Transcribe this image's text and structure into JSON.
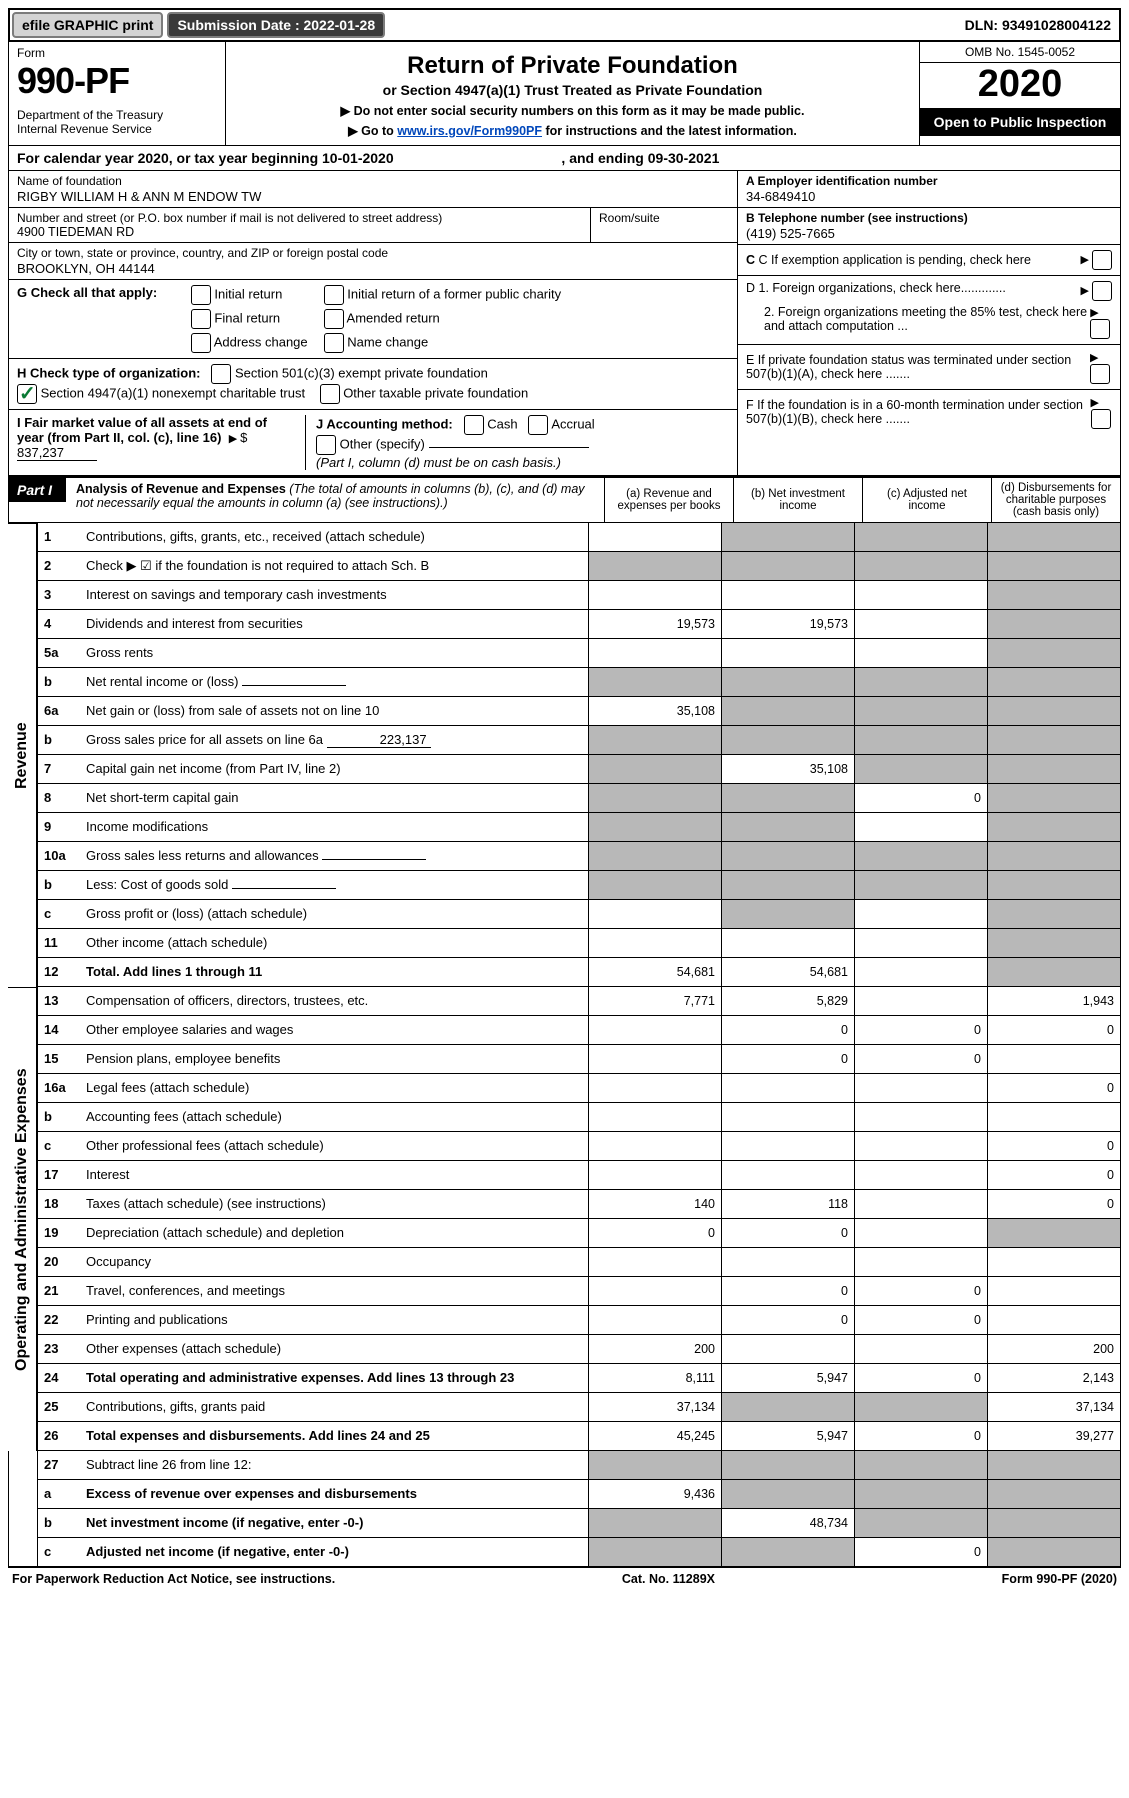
{
  "top": {
    "efile": "efile GRAPHIC print",
    "submission_label": "Submission Date : 2022-01-28",
    "dln": "DLN: 93491028004122"
  },
  "header": {
    "form_label": "Form",
    "form_number": "990-PF",
    "dept1": "Department of the Treasury",
    "dept2": "Internal Revenue Service",
    "title": "Return of Private Foundation",
    "subtitle": "or Section 4947(a)(1) Trust Treated as Private Foundation",
    "note1": "▶ Do not enter social security numbers on this form as it may be made public.",
    "note2_pre": "▶ Go to ",
    "note2_link": "www.irs.gov/Form990PF",
    "note2_post": " for instructions and the latest information.",
    "omb": "OMB No. 1545-0052",
    "year": "2020",
    "open": "Open to Public Inspection"
  },
  "cal_year": {
    "line_pre": "For calendar year 2020, or tax year beginning ",
    "begin": "10-01-2020",
    "line_mid": " , and ending ",
    "end": "09-30-2021"
  },
  "id": {
    "name_label": "Name of foundation",
    "name": "RIGBY WILLIAM H & ANN M ENDOW TW",
    "addr_label": "Number and street (or P.O. box number if mail is not delivered to street address)",
    "addr": "4900 TIEDEMAN RD",
    "room_label": "Room/suite",
    "city_label": "City or town, state or province, country, and ZIP or foreign postal code",
    "city": "BROOKLYN, OH  44144",
    "ein_label": "A Employer identification number",
    "ein": "34-6849410",
    "phone_label": "B Telephone number (see instructions)",
    "phone": "(419) 525-7665",
    "c_label": "C If exemption application is pending, check here",
    "d1": "D 1. Foreign organizations, check here.............",
    "d2": "2. Foreign organizations meeting the 85% test, check here and attach computation ...",
    "e": "E If private foundation status was terminated under section 507(b)(1)(A), check here .......",
    "f": "F If the foundation is in a 60-month termination under section 507(b)(1)(B), check here .......",
    "g_label": "G Check all that apply:",
    "g_opts": [
      "Initial return",
      "Initial return of a former public charity",
      "Final return",
      "Amended return",
      "Address change",
      "Name change"
    ],
    "h_label": "H Check type of organization:",
    "h1": "Section 501(c)(3) exempt private foundation",
    "h2": "Section 4947(a)(1) nonexempt charitable trust",
    "h3": "Other taxable private foundation",
    "i_label": "I Fair market value of all assets at end of year (from Part II, col. (c), line 16)",
    "i_val": "837,237",
    "j_label": "J Accounting method:",
    "j_opts": [
      "Cash",
      "Accrual"
    ],
    "j_other": "Other (specify)",
    "j_note": "(Part I, column (d) must be on cash basis.)"
  },
  "part1": {
    "badge": "Part I",
    "title": "Analysis of Revenue and Expenses",
    "title_note": " (The total of amounts in columns (b), (c), and (d) may not necessarily equal the amounts in column (a) (see instructions).)",
    "col_a": "(a) Revenue and expenses per books",
    "col_b": "(b) Net investment income",
    "col_c": "(c) Adjusted net income",
    "col_d": "(d) Disbursements for charitable purposes (cash basis only)"
  },
  "side": {
    "revenue": "Revenue",
    "opadmin": "Operating and Administrative Expenses"
  },
  "rows": [
    {
      "n": "1",
      "d": "Contributions, gifts, grants, etc., received (attach schedule)",
      "a": "",
      "b": "shaded",
      "c": "shaded",
      "dd": "shaded"
    },
    {
      "n": "2",
      "d": "Check ▶ ☑ if the foundation is not required to attach Sch. B",
      "nod": true,
      "a": "shaded",
      "b": "shaded",
      "c": "shaded",
      "dd": "shaded"
    },
    {
      "n": "3",
      "d": "Interest on savings and temporary cash investments",
      "a": "",
      "b": "",
      "c": "",
      "dd": "shaded"
    },
    {
      "n": "4",
      "d": "Dividends and interest from securities",
      "a": "19,573",
      "b": "19,573",
      "c": "",
      "dd": "shaded"
    },
    {
      "n": "5a",
      "d": "Gross rents",
      "a": "",
      "b": "",
      "c": "",
      "dd": "shaded"
    },
    {
      "n": "b",
      "d": "Net rental income or (loss)",
      "a": "shaded",
      "b": "shaded",
      "c": "shaded",
      "dd": "shaded",
      "inline": ""
    },
    {
      "n": "6a",
      "d": "Net gain or (loss) from sale of assets not on line 10",
      "a": "35,108",
      "b": "shaded",
      "c": "shaded",
      "dd": "shaded"
    },
    {
      "n": "b",
      "d": "Gross sales price for all assets on line 6a",
      "a": "shaded",
      "b": "shaded",
      "c": "shaded",
      "dd": "shaded",
      "inline": "223,137"
    },
    {
      "n": "7",
      "d": "Capital gain net income (from Part IV, line 2)",
      "a": "shaded",
      "b": "35,108",
      "c": "shaded",
      "dd": "shaded"
    },
    {
      "n": "8",
      "d": "Net short-term capital gain",
      "a": "shaded",
      "b": "shaded",
      "c": "0",
      "dd": "shaded"
    },
    {
      "n": "9",
      "d": "Income modifications",
      "a": "shaded",
      "b": "shaded",
      "c": "",
      "dd": "shaded"
    },
    {
      "n": "10a",
      "d": "Gross sales less returns and allowances",
      "a": "shaded",
      "b": "shaded",
      "c": "shaded",
      "dd": "shaded",
      "inline": ""
    },
    {
      "n": "b",
      "d": "Less: Cost of goods sold",
      "a": "shaded",
      "b": "shaded",
      "c": "shaded",
      "dd": "shaded",
      "inline": ""
    },
    {
      "n": "c",
      "d": "Gross profit or (loss) (attach schedule)",
      "a": "",
      "b": "shaded",
      "c": "",
      "dd": "shaded"
    },
    {
      "n": "11",
      "d": "Other income (attach schedule)",
      "a": "",
      "b": "",
      "c": "",
      "dd": "shaded"
    },
    {
      "n": "12",
      "d": "Total. Add lines 1 through 11",
      "bold": true,
      "a": "54,681",
      "b": "54,681",
      "c": "",
      "dd": "shaded"
    }
  ],
  "rows2": [
    {
      "n": "13",
      "d": "Compensation of officers, directors, trustees, etc.",
      "a": "7,771",
      "b": "5,829",
      "c": "",
      "dd": "1,943"
    },
    {
      "n": "14",
      "d": "Other employee salaries and wages",
      "a": "",
      "b": "0",
      "c": "0",
      "dd": "0"
    },
    {
      "n": "15",
      "d": "Pension plans, employee benefits",
      "a": "",
      "b": "0",
      "c": "0",
      "dd": ""
    },
    {
      "n": "16a",
      "d": "Legal fees (attach schedule)",
      "a": "",
      "b": "",
      "c": "",
      "dd": "0"
    },
    {
      "n": "b",
      "d": "Accounting fees (attach schedule)",
      "a": "",
      "b": "",
      "c": "",
      "dd": ""
    },
    {
      "n": "c",
      "d": "Other professional fees (attach schedule)",
      "a": "",
      "b": "",
      "c": "",
      "dd": "0"
    },
    {
      "n": "17",
      "d": "Interest",
      "a": "",
      "b": "",
      "c": "",
      "dd": "0"
    },
    {
      "n": "18",
      "d": "Taxes (attach schedule) (see instructions)",
      "a": "140",
      "b": "118",
      "c": "",
      "dd": "0"
    },
    {
      "n": "19",
      "d": "Depreciation (attach schedule) and depletion",
      "a": "0",
      "b": "0",
      "c": "",
      "dd": "shaded"
    },
    {
      "n": "20",
      "d": "Occupancy",
      "a": "",
      "b": "",
      "c": "",
      "dd": ""
    },
    {
      "n": "21",
      "d": "Travel, conferences, and meetings",
      "a": "",
      "b": "0",
      "c": "0",
      "dd": ""
    },
    {
      "n": "22",
      "d": "Printing and publications",
      "a": "",
      "b": "0",
      "c": "0",
      "dd": ""
    },
    {
      "n": "23",
      "d": "Other expenses (attach schedule)",
      "a": "200",
      "b": "",
      "c": "",
      "dd": "200"
    },
    {
      "n": "24",
      "d": "Total operating and administrative expenses. Add lines 13 through 23",
      "bold": true,
      "a": "8,111",
      "b": "5,947",
      "c": "0",
      "dd": "2,143"
    },
    {
      "n": "25",
      "d": "Contributions, gifts, grants paid",
      "a": "37,134",
      "b": "shaded",
      "c": "shaded",
      "dd": "37,134"
    },
    {
      "n": "26",
      "d": "Total expenses and disbursements. Add lines 24 and 25",
      "bold": true,
      "a": "45,245",
      "b": "5,947",
      "c": "0",
      "dd": "39,277"
    }
  ],
  "rows3": [
    {
      "n": "27",
      "d": "Subtract line 26 from line 12:",
      "a": "shaded",
      "b": "shaded",
      "c": "shaded",
      "dd": "shaded"
    },
    {
      "n": "a",
      "d": "Excess of revenue over expenses and disbursements",
      "bold": true,
      "a": "9,436",
      "b": "shaded",
      "c": "shaded",
      "dd": "shaded"
    },
    {
      "n": "b",
      "d": "Net investment income (if negative, enter -0-)",
      "bold": true,
      "a": "shaded",
      "b": "48,734",
      "c": "shaded",
      "dd": "shaded"
    },
    {
      "n": "c",
      "d": "Adjusted net income (if negative, enter -0-)",
      "bold": true,
      "a": "shaded",
      "b": "shaded",
      "c": "0",
      "dd": "shaded"
    }
  ],
  "footer": {
    "left": "For Paperwork Reduction Act Notice, see instructions.",
    "mid": "Cat. No. 11289X",
    "right": "Form 990-PF (2020)"
  }
}
